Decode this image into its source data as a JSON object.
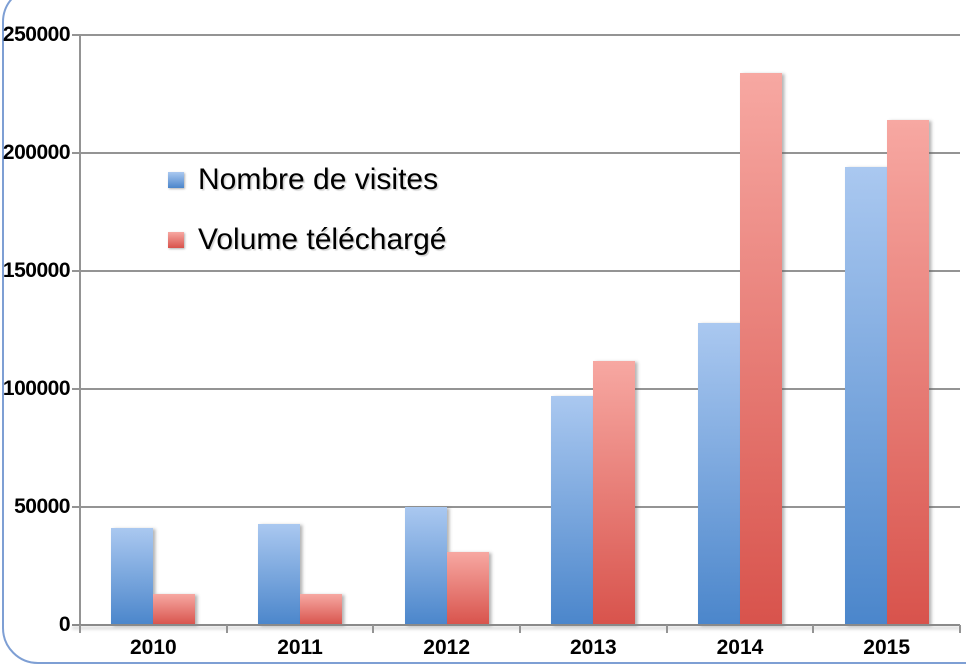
{
  "window": {
    "frame_border_color": "#7e9fd4",
    "background": "#ffffff"
  },
  "chart_data": {
    "type": "bar",
    "title": "",
    "xlabel": "",
    "ylabel": "",
    "categories": [
      "2010",
      "2011",
      "2012",
      "2013",
      "2014",
      "2015"
    ],
    "series": [
      {
        "name": "Nombre de visites",
        "color": "#5b91d2",
        "gradient_top": "#aac8f0",
        "gradient_bottom": "#4b86cb",
        "values": [
          41000,
          43000,
          50000,
          97000,
          128000,
          194000
        ]
      },
      {
        "name": "Volume téléchargé",
        "color": "#df625b",
        "gradient_top": "#f7a8a2",
        "gradient_bottom": "#d8534c",
        "values": [
          13000,
          13000,
          31000,
          112000,
          234000,
          214000
        ]
      }
    ],
    "ylim": [
      0,
      250000
    ],
    "ytick_step": 50000,
    "ytick_labels": [
      "0",
      "50000",
      "100000",
      "150000",
      "200000",
      "250000"
    ],
    "grid": true,
    "legend_position": "inside-top-left",
    "gridline_color": "#949494",
    "axis_color": "#8a8a8a",
    "label_color": "#000000"
  }
}
